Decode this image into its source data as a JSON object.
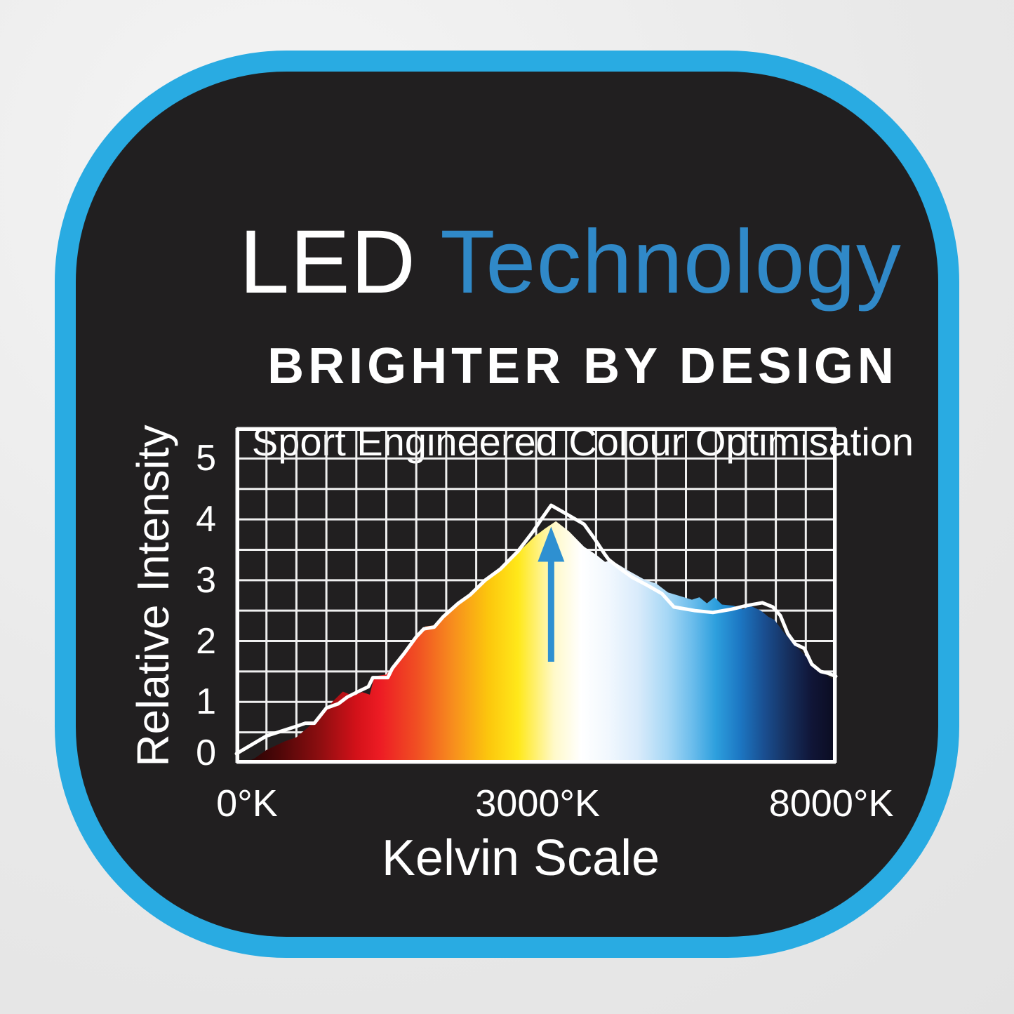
{
  "title": {
    "white_part": "LED",
    "blue_part": "Technology"
  },
  "subtitle": "BRIGHTER BY DESIGN",
  "tagline": "Sport Engineered Colour Optimisation",
  "colors": {
    "frame_border": "#29ABE2",
    "panel_background": "#211F20",
    "page_background": "#E9E9E9",
    "title_blue": "#3089C8",
    "arrow_blue": "#2E90D1",
    "grid_line": "#EFEFEF",
    "curve_line": "#FFFFFF"
  },
  "chart_data": {
    "type": "area",
    "title": "",
    "xlabel": "Kelvin Scale",
    "ylabel": "Relative Intensity",
    "ylim": [
      0,
      5.5
    ],
    "xlim_cols": [
      0,
      20
    ],
    "grid": {
      "on": true,
      "cols": 20,
      "rows": 11,
      "row_value": 0.5
    },
    "y_ticks": [
      5,
      4,
      3,
      2,
      1,
      0
    ],
    "x_tick_labels": [
      "0°K",
      "3000°K",
      "8000°K"
    ],
    "x_tick_positions_col": [
      0.35,
      10.05,
      19.85
    ],
    "series": [
      {
        "name": "led-spectrum-area",
        "type": "area",
        "points": [
          [
            0.25,
            0
          ],
          [
            0.6,
            0.07
          ],
          [
            1.0,
            0.21
          ],
          [
            1.6,
            0.35
          ],
          [
            2.0,
            0.42
          ],
          [
            2.5,
            0.63
          ],
          [
            2.9,
            0.82
          ],
          [
            3.2,
            1.0
          ],
          [
            3.55,
            1.17
          ],
          [
            3.9,
            1.1
          ],
          [
            4.2,
            1.16
          ],
          [
            4.45,
            1.12
          ],
          [
            4.6,
            1.42
          ],
          [
            5.0,
            1.45
          ],
          [
            5.3,
            1.62
          ],
          [
            5.7,
            1.85
          ],
          [
            6.05,
            2.1
          ],
          [
            6.3,
            2.24
          ],
          [
            6.6,
            2.26
          ],
          [
            6.9,
            2.42
          ],
          [
            7.4,
            2.65
          ],
          [
            7.65,
            2.74
          ],
          [
            7.9,
            2.8
          ],
          [
            8.4,
            3.02
          ],
          [
            8.85,
            3.2
          ],
          [
            9.45,
            3.48
          ],
          [
            9.95,
            3.72
          ],
          [
            10.3,
            3.85
          ],
          [
            10.66,
            3.97
          ],
          [
            11.1,
            3.8
          ],
          [
            11.6,
            3.55
          ],
          [
            12.0,
            3.42
          ],
          [
            12.3,
            3.3
          ],
          [
            12.5,
            3.33
          ],
          [
            13.1,
            3.15
          ],
          [
            13.65,
            3.0
          ],
          [
            14.0,
            2.95
          ],
          [
            14.4,
            2.8
          ],
          [
            14.8,
            2.74
          ],
          [
            15.2,
            2.68
          ],
          [
            15.45,
            2.72
          ],
          [
            15.7,
            2.62
          ],
          [
            15.95,
            2.72
          ],
          [
            16.2,
            2.6
          ],
          [
            16.6,
            2.58
          ],
          [
            16.9,
            2.52
          ],
          [
            17.15,
            2.58
          ],
          [
            17.5,
            2.5
          ],
          [
            17.75,
            2.4
          ],
          [
            17.95,
            2.35
          ],
          [
            18.3,
            2.12
          ],
          [
            18.7,
            1.9
          ],
          [
            19.0,
            1.75
          ],
          [
            19.4,
            1.55
          ],
          [
            19.8,
            1.4
          ],
          [
            20,
            1.35
          ]
        ]
      },
      {
        "name": "reference-intensity-line",
        "type": "line",
        "points": [
          [
            0,
            0.15
          ],
          [
            1.0,
            0.44
          ],
          [
            2.0,
            0.6
          ],
          [
            2.3,
            0.65
          ],
          [
            2.6,
            0.65
          ],
          [
            3.0,
            0.9
          ],
          [
            3.4,
            0.97
          ],
          [
            3.7,
            1.08
          ],
          [
            4.1,
            1.18
          ],
          [
            4.4,
            1.25
          ],
          [
            4.55,
            1.4
          ],
          [
            5.05,
            1.4
          ],
          [
            5.2,
            1.55
          ],
          [
            5.6,
            1.8
          ],
          [
            6.0,
            2.07
          ],
          [
            6.25,
            2.2
          ],
          [
            6.6,
            2.23
          ],
          [
            6.9,
            2.4
          ],
          [
            7.4,
            2.62
          ],
          [
            7.8,
            2.76
          ],
          [
            8.3,
            3.0
          ],
          [
            8.8,
            3.18
          ],
          [
            9.4,
            3.48
          ],
          [
            9.9,
            3.8
          ],
          [
            10.2,
            4.02
          ],
          [
            10.5,
            4.23
          ],
          [
            10.9,
            4.12
          ],
          [
            11.6,
            3.92
          ],
          [
            11.95,
            3.68
          ],
          [
            12.3,
            3.42
          ],
          [
            12.42,
            3.34
          ],
          [
            12.8,
            3.19
          ],
          [
            13.2,
            3.05
          ],
          [
            13.7,
            2.92
          ],
          [
            14.2,
            2.78
          ],
          [
            14.6,
            2.56
          ],
          [
            15.3,
            2.5
          ],
          [
            15.9,
            2.47
          ],
          [
            16.5,
            2.52
          ],
          [
            17.0,
            2.58
          ],
          [
            17.55,
            2.63
          ],
          [
            17.9,
            2.56
          ],
          [
            18.15,
            2.42
          ],
          [
            18.4,
            2.12
          ],
          [
            18.65,
            1.95
          ],
          [
            18.95,
            1.88
          ],
          [
            19.2,
            1.62
          ],
          [
            19.5,
            1.5
          ],
          [
            19.75,
            1.47
          ],
          [
            20,
            1.42
          ]
        ]
      }
    ],
    "annotation_arrow": {
      "x_col": 10.5,
      "from_value": 1.66,
      "to_value": 3.88
    },
    "gradient_stops": [
      [
        0,
        "#1A0404"
      ],
      [
        7,
        "#4D0708"
      ],
      [
        14,
        "#8E0E10"
      ],
      [
        20,
        "#D31119"
      ],
      [
        24,
        "#ED1C24"
      ],
      [
        30,
        "#F04E23"
      ],
      [
        36,
        "#F78C1E"
      ],
      [
        42,
        "#FCC60D"
      ],
      [
        47,
        "#FFE81A"
      ],
      [
        53,
        "#FFF9C9"
      ],
      [
        57.5,
        "#FFFFFF"
      ],
      [
        62,
        "#F2F8FE"
      ],
      [
        67,
        "#D9EBFB"
      ],
      [
        72,
        "#A5D7F5"
      ],
      [
        76,
        "#6CBDEC"
      ],
      [
        80,
        "#2D9FDD"
      ],
      [
        84,
        "#1C77C3"
      ],
      [
        88,
        "#1A4F91"
      ],
      [
        92,
        "#16305F"
      ],
      [
        96,
        "#101537"
      ],
      [
        100,
        "#0B0C20"
      ]
    ],
    "legend": "none"
  }
}
